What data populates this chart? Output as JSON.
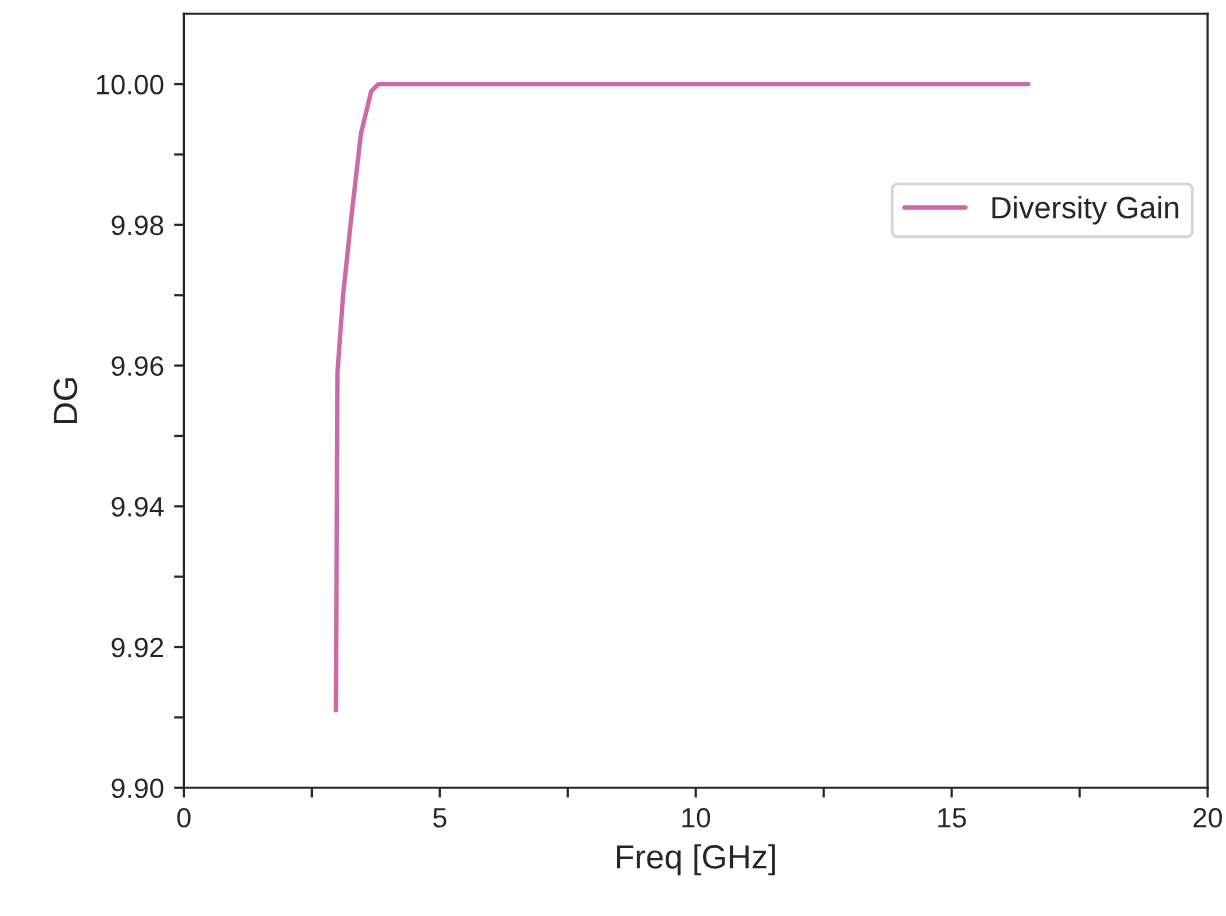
{
  "chart_data": {
    "type": "line",
    "xlabel": "Freq [GHz]",
    "ylabel": "DG",
    "xlim": [
      0,
      20
    ],
    "ylim": [
      9.9,
      10.01
    ],
    "xticks": [
      0,
      {
        "value": 2.5,
        "label": null
      },
      5,
      {
        "value": 7.5,
        "label": null
      },
      10,
      {
        "value": 12.5,
        "label": null
      },
      15,
      {
        "value": 17.5,
        "label": null
      },
      20
    ],
    "yticks": [
      {
        "value": 9.9,
        "label": "9.90"
      },
      {
        "value": 9.91,
        "label": null
      },
      {
        "value": 9.92,
        "label": "9.92"
      },
      {
        "value": 9.93,
        "label": null
      },
      {
        "value": 9.94,
        "label": "9.94"
      },
      {
        "value": 9.95,
        "label": null
      },
      {
        "value": 9.96,
        "label": "9.96"
      },
      {
        "value": 9.97,
        "label": null
      },
      {
        "value": 9.98,
        "label": "9.98"
      },
      {
        "value": 9.99,
        "label": null
      },
      {
        "value": 10.0,
        "label": "10.00"
      }
    ],
    "legend": "top right",
    "grid": false,
    "marker": "none",
    "line_style": "solid",
    "series": [
      {
        "name": "Diversity Gain",
        "color": "#cc6aa8",
        "x": [
          2.97,
          3.0,
          3.11,
          3.27,
          3.46,
          3.66,
          3.8,
          10,
          16.5
        ],
        "values": [
          9.911,
          9.959,
          9.97,
          9.981,
          9.993,
          9.999,
          10.0,
          10.0,
          10.0
        ]
      }
    ]
  }
}
